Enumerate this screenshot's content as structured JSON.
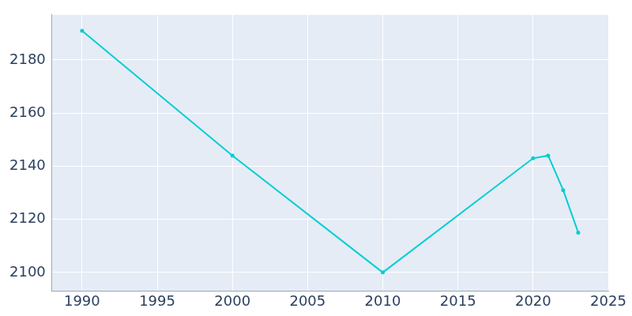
{
  "chart_data": {
    "type": "line",
    "x": [
      1990,
      2000,
      2010,
      2020,
      2021,
      2022,
      2023
    ],
    "values": [
      2191,
      2144,
      2100,
      2143,
      2144,
      2131,
      2115
    ],
    "color": "#00ced1",
    "marker": "circle",
    "xlim": [
      1988,
      2025
    ],
    "xticks": [
      1990,
      1995,
      2000,
      2005,
      2010,
      2015,
      2020,
      2025
    ],
    "ylim": [
      2093,
      2197
    ],
    "yticks": [
      2100,
      2120,
      2140,
      2160,
      2180
    ],
    "grid": true
  }
}
